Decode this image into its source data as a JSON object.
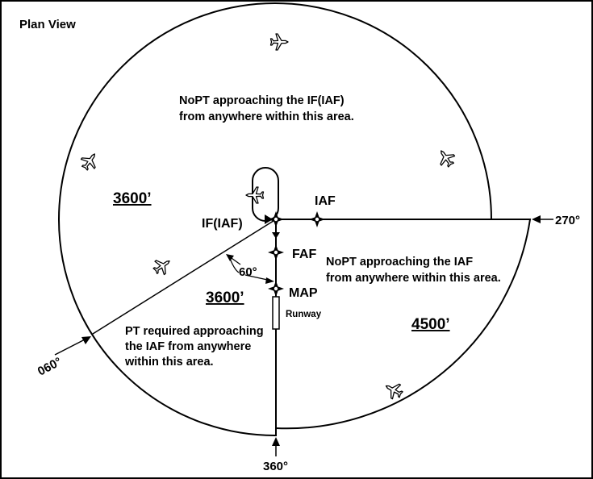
{
  "title": "Plan View",
  "altitudes": {
    "nw": "3600’",
    "sw": "3600’",
    "se": "4500’"
  },
  "fixes": {
    "if_iaf": "IF(IAF)",
    "iaf": "IAF",
    "faf": "FAF",
    "map": "MAP",
    "runway": "Runway"
  },
  "bearings": {
    "b060": "060°",
    "b270": "270°",
    "b360": "360°",
    "angle": "60°"
  },
  "notes": {
    "top": [
      "NoPT approaching the IF(IAF)",
      "from anywhere within this area."
    ],
    "right": [
      "NoPT approaching the IAF",
      "from anywhere within this area."
    ],
    "left": [
      "PT required approaching",
      "the IAF from anywhere",
      "within this area."
    ]
  },
  "icons": [
    "airplane-icon",
    "holding-pattern-icon",
    "fix-marker-icon",
    "arrow-icon"
  ],
  "colors": {
    "ink": "#000000",
    "background": "#ffffff"
  }
}
